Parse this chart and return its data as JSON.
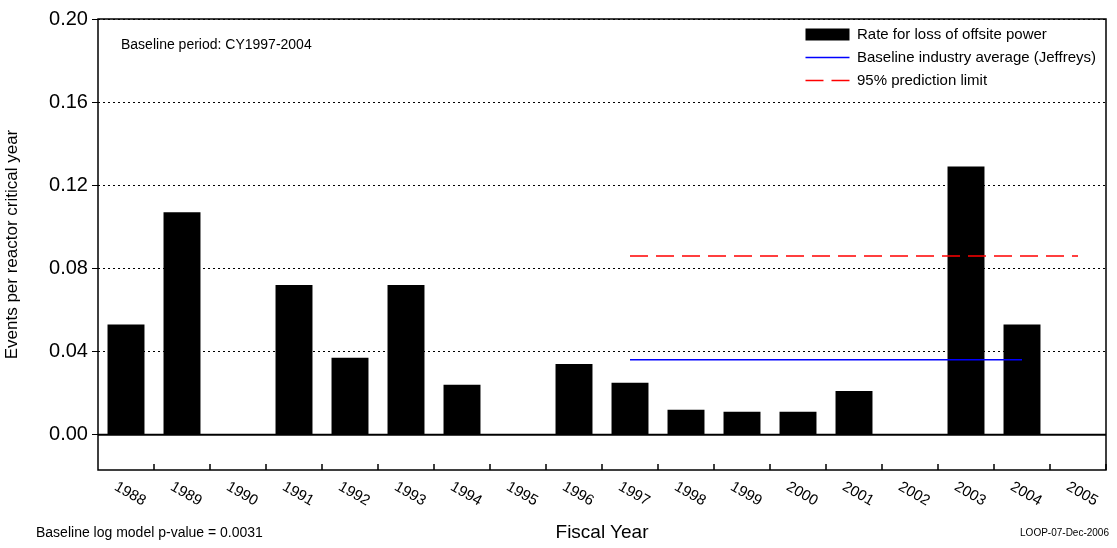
{
  "chart_data": {
    "type": "bar",
    "xlabel": "Fiscal Year",
    "ylabel": "Events per reactor critical year",
    "categories": [
      "1988",
      "1989",
      "1990",
      "1991",
      "1992",
      "1993",
      "1994",
      "1995",
      "1996",
      "1997",
      "1998",
      "1999",
      "2000",
      "2001",
      "2002",
      "2003",
      "2004",
      "2005"
    ],
    "series": [
      {
        "name": "Rate for loss of offsite power",
        "color": "#000000",
        "values": [
          0.053,
          0.107,
          0,
          0.072,
          0.037,
          0.072,
          0.024,
          0,
          0.034,
          0.025,
          0.012,
          0.011,
          0.011,
          0.021,
          0,
          0.129,
          0.053,
          0
        ]
      },
      {
        "name": "Baseline industry average (Jeffreys)",
        "type": "line",
        "color": "#0000ff",
        "line_style": "solid",
        "values": [
          null,
          null,
          null,
          null,
          null,
          null,
          null,
          null,
          null,
          0.036,
          0.036,
          0.036,
          0.036,
          0.036,
          0.036,
          0.036,
          0.036,
          null
        ]
      },
      {
        "name": "95% prediction limit",
        "type": "line",
        "color": "#ff0000",
        "line_style": "dashed",
        "values": [
          null,
          null,
          null,
          null,
          null,
          null,
          null,
          null,
          null,
          0.086,
          0.086,
          0.086,
          0.086,
          0.086,
          0.086,
          0.086,
          0.086,
          0.086
        ]
      }
    ],
    "ylim": [
      -0.017,
      0.2
    ],
    "yticks": [
      {
        "value": 0,
        "label": "0.00"
      },
      {
        "value": 0.04,
        "label": "0.04"
      },
      {
        "value": 0.08,
        "label": "0.08"
      },
      {
        "value": 0.12,
        "label": "0.12"
      },
      {
        "value": 0.16,
        "label": "0.16"
      },
      {
        "value": 0.2,
        "label": "0.20"
      }
    ],
    "ref_lines": [
      {
        "axis": "y",
        "value": 0,
        "color": "#000000"
      }
    ],
    "grid": "y",
    "legend": "top right",
    "annotations": [
      "Baseline period:  CY1997-2004",
      "Baseline log model p-value = 0.0031",
      "LOOP-07-Dec-2006"
    ]
  }
}
